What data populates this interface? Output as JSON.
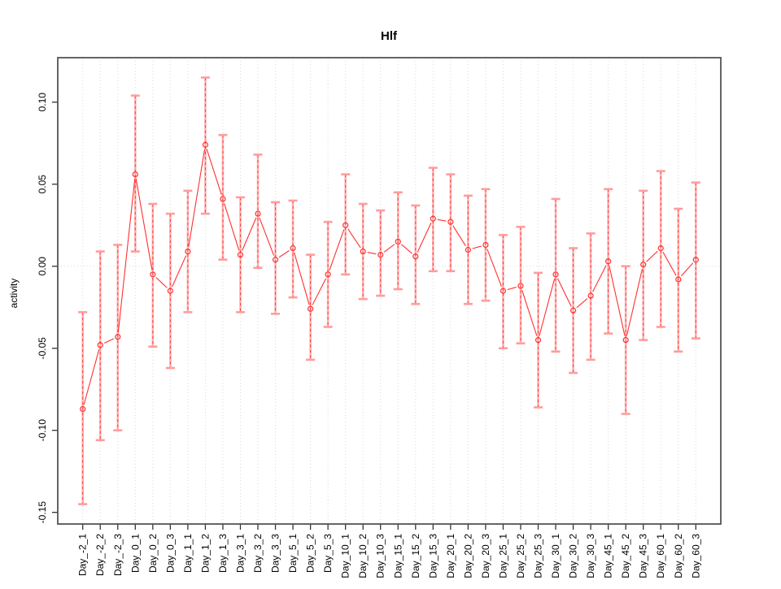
{
  "title": "Hlf",
  "ylabel": "activity",
  "xlabel": "",
  "chart_data": {
    "type": "line",
    "subtype": "points-with-error-bars",
    "title": "Hlf",
    "ylabel": "activity",
    "legend": "none",
    "grid": "dotted vertical gridline at every category; dotted horizontal line at y=0",
    "ylim": [
      -0.1571,
      0.1271
    ],
    "yticks": [
      {
        "value": 0.1,
        "label": "0.10"
      },
      {
        "value": 0.05,
        "label": "0.05"
      },
      {
        "value": 0.0,
        "label": "0.00"
      },
      {
        "value": -0.05,
        "label": "-0.05"
      },
      {
        "value": -0.1,
        "label": "-0.10"
      },
      {
        "value": -0.15,
        "label": "-0.15"
      }
    ],
    "categories": [
      "Day_-2_1",
      "Day_-2_2",
      "Day_-2_3",
      "Day_0_1",
      "Day_0_2",
      "Day_0_3",
      "Day_1_1",
      "Day_1_2",
      "Day_1_3",
      "Day_3_1",
      "Day_3_2",
      "Day_3_3",
      "Day_5_1",
      "Day_5_2",
      "Day_5_3",
      "Day_10_1",
      "Day_10_2",
      "Day_10_3",
      "Day_15_1",
      "Day_15_2",
      "Day_15_3",
      "Day_20_1",
      "Day_20_2",
      "Day_20_3",
      "Day_25_1",
      "Day_25_2",
      "Day_25_3",
      "Day_30_1",
      "Day_30_2",
      "Day_30_3",
      "Day_45_1",
      "Day_45_2",
      "Day_45_3",
      "Day_60_1",
      "Day_60_2",
      "Day_60_3"
    ],
    "series": [
      {
        "name": "activity",
        "values": [
          -0.087,
          -0.048,
          -0.043,
          0.056,
          -0.005,
          -0.015,
          0.009,
          0.074,
          0.041,
          0.007,
          0.032,
          0.004,
          0.011,
          -0.026,
          -0.005,
          0.025,
          0.009,
          0.007,
          0.015,
          0.006,
          0.029,
          0.027,
          0.01,
          0.013,
          -0.015,
          -0.012,
          -0.045,
          -0.005,
          -0.027,
          -0.018,
          0.003,
          -0.045,
          0.001,
          0.011,
          -0.008,
          0.004
        ],
        "upper": [
          -0.028,
          0.009,
          0.013,
          0.104,
          0.038,
          0.032,
          0.046,
          0.115,
          0.08,
          0.042,
          0.068,
          0.039,
          0.04,
          0.007,
          0.027,
          0.056,
          0.038,
          0.034,
          0.045,
          0.037,
          0.06,
          0.056,
          0.043,
          0.047,
          0.019,
          0.024,
          -0.004,
          0.041,
          0.011,
          0.02,
          0.047,
          0.0,
          0.046,
          0.058,
          0.035,
          0.051
        ],
        "lower": [
          -0.145,
          -0.106,
          -0.1,
          0.009,
          -0.049,
          -0.062,
          -0.028,
          0.032,
          0.004,
          -0.028,
          -0.001,
          -0.029,
          -0.019,
          -0.057,
          -0.037,
          -0.005,
          -0.02,
          -0.018,
          -0.014,
          -0.023,
          -0.003,
          -0.003,
          -0.023,
          -0.021,
          -0.05,
          -0.047,
          -0.086,
          -0.052,
          -0.065,
          -0.057,
          -0.041,
          -0.09,
          -0.045,
          -0.037,
          -0.052,
          -0.044
        ]
      }
    ],
    "colors": {
      "series_line": "#ff3030",
      "point_stroke": "#ff3030",
      "error_bar_soft": "#ff9c9c",
      "error_bar_dash": "#ff4040",
      "gridline": "#d9d9d9",
      "plot_border": "#545454",
      "tick": "#333333",
      "text": "#000000",
      "background": "#ffffff"
    }
  }
}
